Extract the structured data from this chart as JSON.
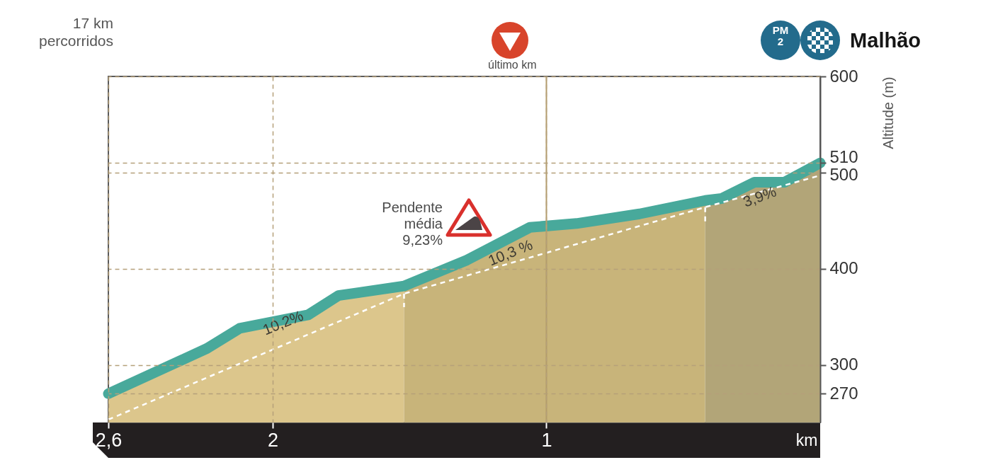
{
  "chart_data": {
    "type": "area",
    "title": "Malhão",
    "y2label": "Altitude (m)",
    "xlabel": "km",
    "annotations": [
      "17 km percorridos",
      "Pendente média 9,23%",
      "PM 2",
      "10,2%",
      "10,3 %",
      "3,9%"
    ],
    "xlim": [
      2.6,
      0
    ],
    "xticks": [
      {
        "value": 2.6,
        "label": "2,6"
      },
      2,
      1
    ],
    "y2lim": [
      240,
      600
    ],
    "y2ticks": [
      270,
      300,
      400,
      500,
      510,
      600
    ],
    "grid": true,
    "ref_lines": [
      {
        "axis": "x",
        "value": 1,
        "label": "último km",
        "color": "#b39c6b",
        "line_style": "solid"
      }
    ],
    "series": [
      {
        "type": "area",
        "axis": "y2",
        "color": "#dcc68c",
        "x": [
          2.6,
          2.24,
          2.12,
          1.87,
          1.76,
          1.52
        ],
        "values": [
          270,
          317,
          338,
          352,
          372,
          382
        ]
      },
      {
        "type": "area",
        "axis": "y2",
        "color": "#c8b47a",
        "x": [
          1.52,
          1.29,
          1.06,
          0.89,
          0.66,
          0.42
        ],
        "values": [
          382,
          409,
          443,
          447,
          457,
          471
        ]
      },
      {
        "type": "area",
        "axis": "y2",
        "color": "#b2a578",
        "x": [
          0.42,
          0.36,
          0.24,
          0.13,
          0
        ],
        "values": [
          471,
          473,
          490,
          490,
          510
        ]
      },
      {
        "type": "line",
        "axis": "y2",
        "color": "#48a99b",
        "x": [
          2.6,
          2.24,
          2.12,
          1.87,
          1.76,
          1.52,
          1.29,
          1.06,
          0.89,
          0.66,
          0.42,
          0.36,
          0.24,
          0.13,
          0
        ],
        "values": [
          270,
          317,
          338,
          352,
          372,
          382,
          409,
          443,
          447,
          457,
          471,
          473,
          490,
          490,
          510
        ]
      },
      {
        "type": "line",
        "axis": "y2",
        "color": "#ffffff",
        "line_style": "dashed",
        "x": [
          2.6,
          1.52,
          0.42,
          0
        ],
        "values": [
          243,
          374,
          464,
          497
        ]
      },
      {
        "type": "line",
        "axis": "y2",
        "color": "#ffffff",
        "line_style": "dashed",
        "x": [
          1.52,
          1.52
        ],
        "values": [
          374,
          360
        ]
      },
      {
        "type": "line",
        "axis": "y2",
        "color": "#ffffff",
        "line_style": "dashed",
        "x": [
          0.42,
          0.42
        ],
        "values": [
          464,
          449
        ]
      }
    ]
  }
}
